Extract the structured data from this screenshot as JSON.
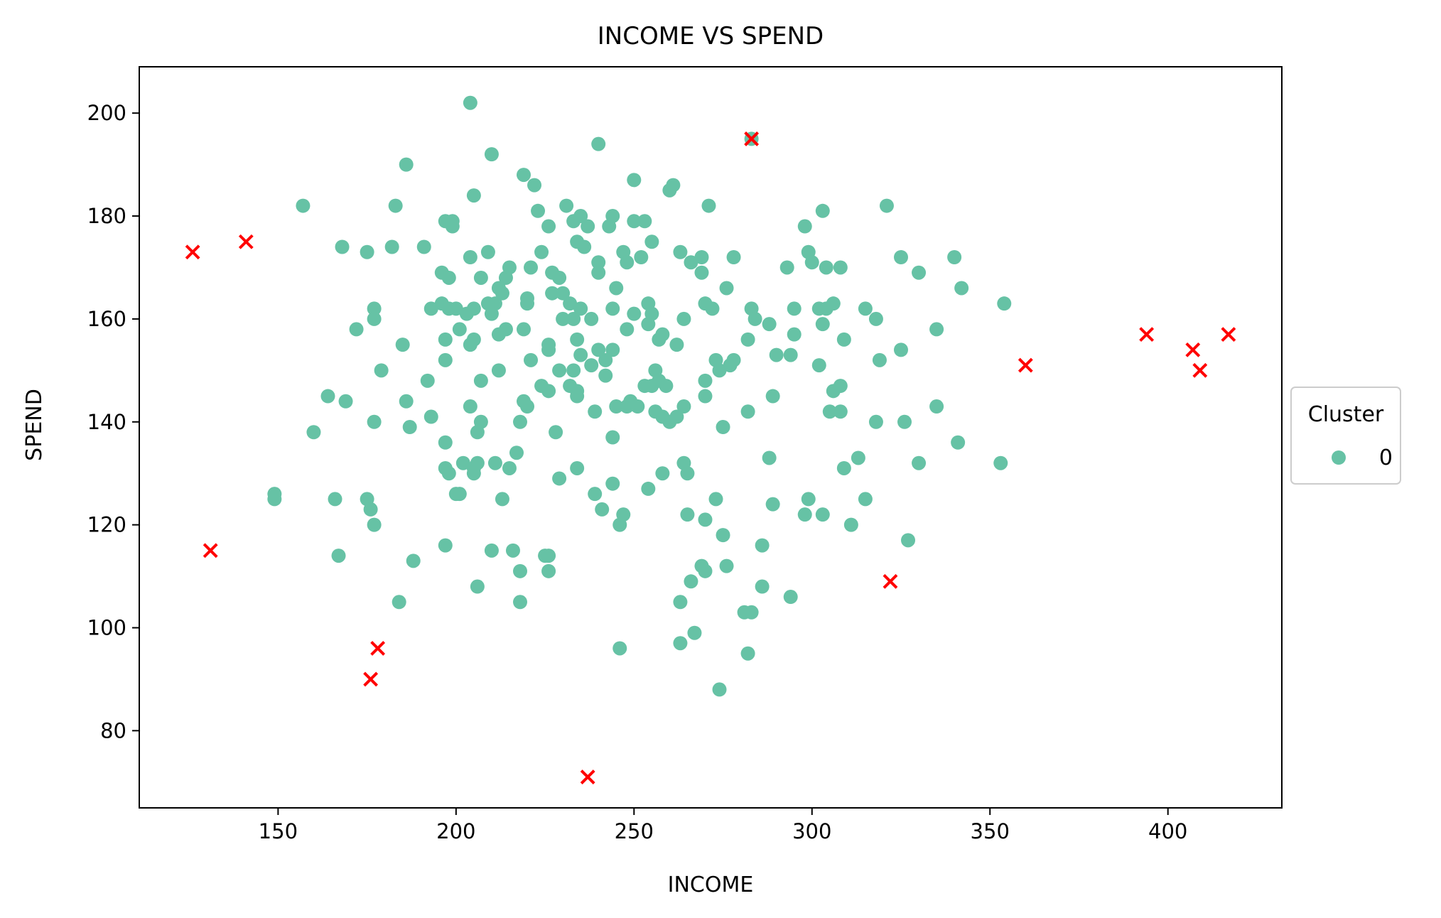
{
  "chart_data": {
    "type": "scatter",
    "title": "INCOME VS SPEND",
    "xlabel": "INCOME",
    "ylabel": "SPEND",
    "xlim": [
      111,
      432
    ],
    "ylim": [
      65,
      209
    ],
    "xticks": [
      150,
      200,
      250,
      300,
      350,
      400
    ],
    "yticks": [
      80,
      100,
      120,
      140,
      160,
      180,
      200
    ],
    "grid": false,
    "legend": {
      "title": "Cluster",
      "placement": "center-right outside",
      "entries": [
        {
          "label": "0",
          "color": "#66c2a5",
          "marker": "circle"
        }
      ]
    },
    "series": [
      {
        "name": "0",
        "color": "#66c2a5",
        "marker": "circle",
        "points": [
          [
            204,
            202
          ],
          [
            240,
            194
          ],
          [
            210,
            192
          ],
          [
            283,
            195
          ],
          [
            186,
            190
          ],
          [
            219,
            188
          ],
          [
            250,
            187
          ],
          [
            222,
            186
          ],
          [
            260,
            185
          ],
          [
            261,
            186
          ],
          [
            157,
            182
          ],
          [
            183,
            182
          ],
          [
            231,
            182
          ],
          [
            271,
            182
          ],
          [
            321,
            182
          ],
          [
            223,
            181
          ],
          [
            303,
            181
          ],
          [
            205,
            184
          ],
          [
            244,
            180
          ],
          [
            235,
            180
          ],
          [
            197,
            179
          ],
          [
            199,
            179
          ],
          [
            199,
            178
          ],
          [
            233,
            179
          ],
          [
            237,
            178
          ],
          [
            243,
            178
          ],
          [
            250,
            179
          ],
          [
            253,
            179
          ],
          [
            298,
            178
          ],
          [
            226,
            178
          ],
          [
            168,
            174
          ],
          [
            175,
            173
          ],
          [
            182,
            174
          ],
          [
            191,
            174
          ],
          [
            204,
            172
          ],
          [
            209,
            173
          ],
          [
            224,
            173
          ],
          [
            240,
            171
          ],
          [
            247,
            173
          ],
          [
            248,
            171
          ],
          [
            252,
            172
          ],
          [
            255,
            175
          ],
          [
            263,
            173
          ],
          [
            266,
            171
          ],
          [
            269,
            172
          ],
          [
            278,
            172
          ],
          [
            299,
            173
          ],
          [
            300,
            171
          ],
          [
            325,
            172
          ],
          [
            340,
            172
          ],
          [
            234,
            175
          ],
          [
            236,
            174
          ],
          [
            196,
            169
          ],
          [
            198,
            168
          ],
          [
            207,
            168
          ],
          [
            214,
            168
          ],
          [
            215,
            170
          ],
          [
            221,
            170
          ],
          [
            227,
            169
          ],
          [
            229,
            168
          ],
          [
            240,
            169
          ],
          [
            245,
            166
          ],
          [
            269,
            169
          ],
          [
            276,
            166
          ],
          [
            293,
            170
          ],
          [
            304,
            170
          ],
          [
            308,
            170
          ],
          [
            330,
            169
          ],
          [
            342,
            166
          ],
          [
            212,
            166
          ],
          [
            211,
            163
          ],
          [
            213,
            165
          ],
          [
            209,
            163
          ],
          [
            220,
            164
          ],
          [
            220,
            163
          ],
          [
            227,
            165
          ],
          [
            230,
            165
          ],
          [
            232,
            163
          ],
          [
            235,
            162
          ],
          [
            233,
            160
          ],
          [
            193,
            162
          ],
          [
            196,
            163
          ],
          [
            198,
            162
          ],
          [
            200,
            162
          ],
          [
            203,
            161
          ],
          [
            205,
            162
          ],
          [
            210,
            161
          ],
          [
            238,
            160
          ],
          [
            244,
            162
          ],
          [
            250,
            161
          ],
          [
            254,
            163
          ],
          [
            255,
            161
          ],
          [
            258,
            157
          ],
          [
            264,
            160
          ],
          [
            270,
            163
          ],
          [
            272,
            162
          ],
          [
            283,
            162
          ],
          [
            284,
            160
          ],
          [
            288,
            159
          ],
          [
            295,
            162
          ],
          [
            302,
            162
          ],
          [
            304,
            162
          ],
          [
            306,
            163
          ],
          [
            303,
            159
          ],
          [
            315,
            162
          ],
          [
            318,
            160
          ],
          [
            335,
            158
          ],
          [
            354,
            163
          ],
          [
            230,
            160
          ],
          [
            177,
            162
          ],
          [
            177,
            160
          ],
          [
            172,
            158
          ],
          [
            185,
            155
          ],
          [
            197,
            156
          ],
          [
            201,
            158
          ],
          [
            204,
            155
          ],
          [
            205,
            156
          ],
          [
            212,
            157
          ],
          [
            214,
            158
          ],
          [
            219,
            158
          ],
          [
            226,
            155
          ],
          [
            226,
            154
          ],
          [
            234,
            156
          ],
          [
            235,
            153
          ],
          [
            238,
            151
          ],
          [
            240,
            154
          ],
          [
            242,
            152
          ],
          [
            244,
            154
          ],
          [
            248,
            158
          ],
          [
            254,
            159
          ],
          [
            256,
            150
          ],
          [
            257,
            156
          ],
          [
            262,
            155
          ],
          [
            273,
            152
          ],
          [
            274,
            150
          ],
          [
            277,
            151
          ],
          [
            278,
            152
          ],
          [
            282,
            156
          ],
          [
            290,
            153
          ],
          [
            294,
            153
          ],
          [
            295,
            157
          ],
          [
            302,
            151
          ],
          [
            309,
            156
          ],
          [
            319,
            152
          ],
          [
            325,
            154
          ],
          [
            197,
            152
          ],
          [
            179,
            150
          ],
          [
            192,
            148
          ],
          [
            207,
            148
          ],
          [
            212,
            150
          ],
          [
            221,
            152
          ],
          [
            224,
            147
          ],
          [
            226,
            146
          ],
          [
            229,
            150
          ],
          [
            232,
            147
          ],
          [
            233,
            150
          ],
          [
            234,
            145
          ],
          [
            234,
            146
          ],
          [
            242,
            149
          ],
          [
            253,
            147
          ],
          [
            255,
            147
          ],
          [
            257,
            148
          ],
          [
            259,
            147
          ],
          [
            270,
            148
          ],
          [
            270,
            145
          ],
          [
            289,
            145
          ],
          [
            306,
            146
          ],
          [
            308,
            147
          ],
          [
            164,
            145
          ],
          [
            169,
            144
          ],
          [
            186,
            144
          ],
          [
            204,
            143
          ],
          [
            219,
            144
          ],
          [
            220,
            143
          ],
          [
            239,
            142
          ],
          [
            245,
            143
          ],
          [
            248,
            143
          ],
          [
            249,
            144
          ],
          [
            251,
            143
          ],
          [
            256,
            142
          ],
          [
            258,
            141
          ],
          [
            260,
            140
          ],
          [
            262,
            141
          ],
          [
            264,
            143
          ],
          [
            282,
            142
          ],
          [
            305,
            142
          ],
          [
            308,
            142
          ],
          [
            318,
            140
          ],
          [
            326,
            140
          ],
          [
            335,
            143
          ],
          [
            160,
            138
          ],
          [
            177,
            140
          ],
          [
            187,
            139
          ],
          [
            193,
            141
          ],
          [
            206,
            138
          ],
          [
            207,
            140
          ],
          [
            218,
            140
          ],
          [
            228,
            138
          ],
          [
            244,
            137
          ],
          [
            275,
            139
          ],
          [
            197,
            136
          ],
          [
            197,
            131
          ],
          [
            198,
            130
          ],
          [
            202,
            132
          ],
          [
            205,
            131
          ],
          [
            205,
            130
          ],
          [
            206,
            132
          ],
          [
            211,
            132
          ],
          [
            215,
            131
          ],
          [
            217,
            134
          ],
          [
            229,
            129
          ],
          [
            234,
            131
          ],
          [
            258,
            130
          ],
          [
            264,
            132
          ],
          [
            265,
            130
          ],
          [
            288,
            133
          ],
          [
            309,
            131
          ],
          [
            313,
            133
          ],
          [
            330,
            132
          ],
          [
            341,
            136
          ],
          [
            353,
            132
          ],
          [
            149,
            126
          ],
          [
            149,
            125
          ],
          [
            166,
            125
          ],
          [
            175,
            125
          ],
          [
            176,
            123
          ],
          [
            200,
            126
          ],
          [
            201,
            126
          ],
          [
            213,
            125
          ],
          [
            239,
            126
          ],
          [
            241,
            123
          ],
          [
            244,
            128
          ],
          [
            247,
            122
          ],
          [
            254,
            127
          ],
          [
            265,
            122
          ],
          [
            270,
            121
          ],
          [
            273,
            125
          ],
          [
            289,
            124
          ],
          [
            298,
            122
          ],
          [
            299,
            125
          ],
          [
            303,
            122
          ],
          [
            311,
            120
          ],
          [
            315,
            125
          ],
          [
            177,
            120
          ],
          [
            246,
            120
          ],
          [
            275,
            118
          ],
          [
            327,
            117
          ],
          [
            167,
            114
          ],
          [
            188,
            113
          ],
          [
            197,
            116
          ],
          [
            210,
            115
          ],
          [
            216,
            115
          ],
          [
            218,
            111
          ],
          [
            225,
            114
          ],
          [
            226,
            114
          ],
          [
            226,
            111
          ],
          [
            266,
            109
          ],
          [
            269,
            112
          ],
          [
            270,
            111
          ],
          [
            276,
            112
          ],
          [
            286,
            116
          ],
          [
            286,
            108
          ],
          [
            206,
            108
          ],
          [
            184,
            105
          ],
          [
            218,
            105
          ],
          [
            263,
            105
          ],
          [
            281,
            103
          ],
          [
            283,
            103
          ],
          [
            294,
            106
          ],
          [
            246,
            96
          ],
          [
            263,
            97
          ],
          [
            267,
            99
          ],
          [
            282,
            95
          ],
          [
            274,
            88
          ]
        ]
      },
      {
        "name": "",
        "color": "#ff0000",
        "marker": "x",
        "points": [
          [
            126,
            173
          ],
          [
            141,
            175
          ],
          [
            131,
            115
          ],
          [
            178,
            96
          ],
          [
            176,
            90
          ],
          [
            237,
            71
          ],
          [
            283,
            195
          ],
          [
            322,
            109
          ],
          [
            360,
            151
          ],
          [
            394,
            157
          ],
          [
            407,
            154
          ],
          [
            409,
            150
          ],
          [
            417,
            157
          ]
        ]
      }
    ]
  }
}
